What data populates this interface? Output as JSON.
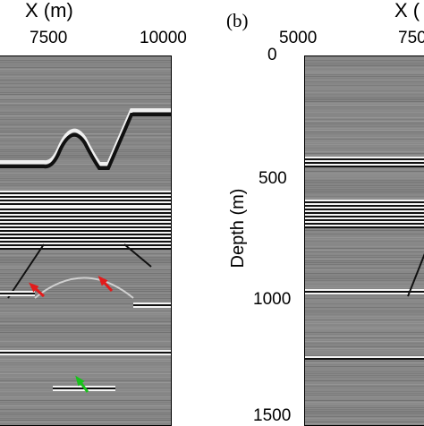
{
  "figure": {
    "panel_a": {
      "x_axis_title": "X (m)",
      "x_ticks": [
        "7500",
        "10000"
      ]
    },
    "panel_b": {
      "label": "(b)",
      "x_axis_title": "X (",
      "x_ticks": [
        "5000",
        "750"
      ],
      "y_axis_title": "Depth (m)",
      "y_ticks": [
        "0",
        "500",
        "1000",
        "1500"
      ]
    },
    "annotations": {
      "arrow_colors": {
        "red": "#e21b1b",
        "green": "#18c21b"
      },
      "red_arrows": 2,
      "green_arrows": 1
    }
  }
}
